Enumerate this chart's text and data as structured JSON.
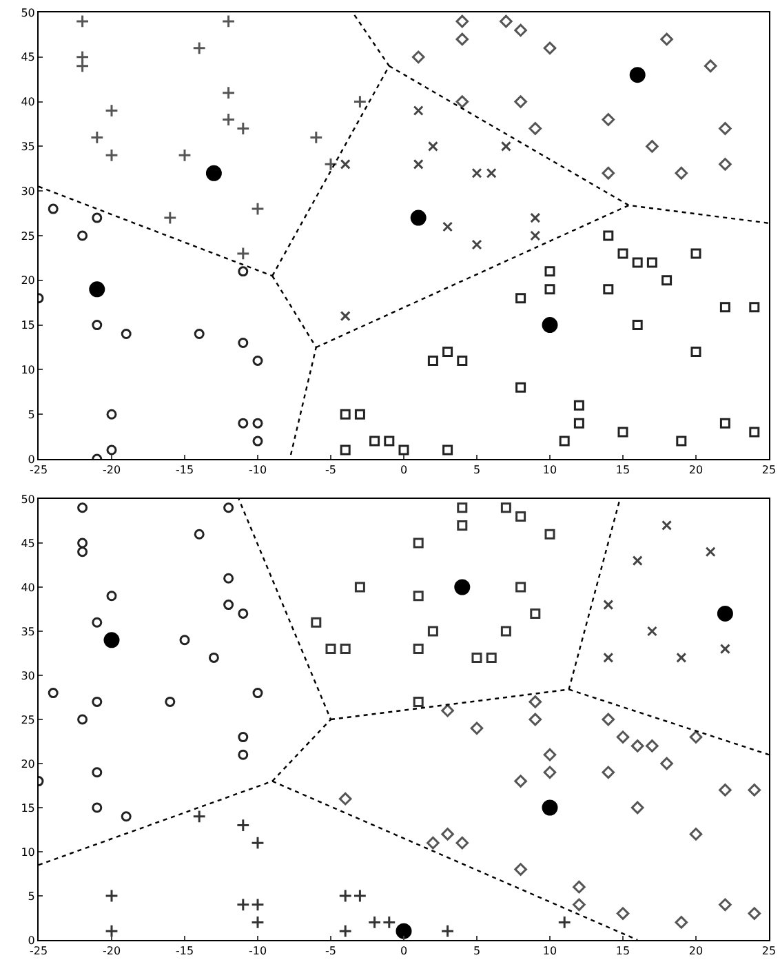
{
  "chart_data": [
    {
      "type": "scatter",
      "xlim": [
        -25,
        25
      ],
      "ylim": [
        0,
        50
      ],
      "xticks": [
        -25,
        -20,
        -15,
        -10,
        -5,
        0,
        5,
        10,
        15,
        20,
        25
      ],
      "yticks": [
        0,
        5,
        10,
        15,
        20,
        25,
        30,
        35,
        40,
        45,
        50
      ],
      "grid": false,
      "series": [
        {
          "color": "#555555",
          "marker": "cross-thin-open",
          "x": [
            -22,
            -22,
            -22,
            -12,
            -14,
            -20,
            -12,
            -12,
            -11,
            -21,
            -20,
            -15,
            -6,
            -5,
            -3,
            -16,
            -10,
            -11
          ],
          "values": [
            49,
            45,
            44,
            49,
            46,
            39,
            41,
            38,
            37,
            36,
            34,
            34,
            36,
            33,
            40,
            27,
            28,
            23
          ]
        },
        {
          "color": "#222222",
          "marker": "circle-open",
          "x": [
            -24,
            -21,
            -22,
            -11,
            -25,
            -21,
            -19,
            -14,
            -11,
            -10,
            -20,
            -11,
            -10,
            -10,
            -20,
            -21
          ],
          "values": [
            28,
            27,
            25,
            21,
            18,
            15,
            14,
            14,
            13,
            11,
            5,
            4,
            4,
            2,
            1,
            0
          ]
        },
        {
          "color": "#444444",
          "marker": "cross",
          "x": [
            1,
            2,
            7,
            1,
            5,
            6,
            3,
            9,
            9,
            5,
            -4,
            -4
          ],
          "values": [
            39,
            35,
            35,
            33,
            32,
            32,
            26,
            27,
            25,
            24,
            33,
            16
          ]
        },
        {
          "color": "#555555",
          "marker": "diamond-open",
          "x": [
            4,
            7,
            8,
            4,
            10,
            18,
            1,
            21,
            4,
            8,
            14,
            9,
            22,
            17,
            22,
            14,
            19
          ],
          "values": [
            49,
            49,
            48,
            47,
            46,
            47,
            45,
            44,
            40,
            40,
            38,
            37,
            37,
            35,
            33,
            32,
            32
          ]
        },
        {
          "color": "#222222",
          "marker": "square-open",
          "x": [
            14,
            15,
            16,
            17,
            20,
            10,
            18,
            10,
            14,
            8,
            22,
            24,
            16,
            20,
            2,
            3,
            4,
            8,
            12,
            12,
            15,
            22,
            24,
            11,
            19,
            -1,
            0,
            3,
            -4,
            -3,
            -4,
            -2
          ],
          "values": [
            25,
            23,
            22,
            22,
            23,
            21,
            20,
            19,
            19,
            18,
            17,
            17,
            15,
            12,
            11,
            12,
            11,
            8,
            6,
            4,
            3,
            4,
            3,
            2,
            2,
            2,
            1,
            1,
            5,
            5,
            1,
            2
          ]
        },
        {
          "color": "#000000",
          "marker": "circle",
          "x": [
            -13,
            -21,
            1,
            16,
            10
          ],
          "values": [
            32,
            19,
            27,
            43,
            15
          ]
        },
        {
          "type": "line",
          "color": "#000000",
          "line_style": "dotted",
          "marker": "none",
          "x": [
            -25,
            -9
          ],
          "values": [
            30.5,
            20.5
          ]
        },
        {
          "type": "line",
          "color": "#000000",
          "line_style": "dotted",
          "marker": "none",
          "x": [
            -9,
            -6,
            -7.8
          ],
          "values": [
            20.5,
            12.5,
            0
          ]
        },
        {
          "type": "line",
          "color": "#000000",
          "line_style": "dotted",
          "marker": "none",
          "x": [
            -9,
            -1,
            -3.5
          ],
          "values": [
            20.5,
            44,
            50
          ]
        },
        {
          "type": "line",
          "color": "#000000",
          "line_style": "dotted",
          "marker": "none",
          "x": [
            -1,
            15.4,
            25
          ],
          "values": [
            44,
            28.4,
            26.4
          ]
        },
        {
          "type": "line",
          "color": "#000000",
          "line_style": "dotted",
          "marker": "none",
          "x": [
            -6,
            15.4
          ],
          "values": [
            12.5,
            28.4
          ]
        }
      ]
    },
    {
      "type": "scatter",
      "xlim": [
        -25,
        25
      ],
      "ylim": [
        0,
        50
      ],
      "xticks": [
        -25,
        -20,
        -15,
        -10,
        -5,
        0,
        5,
        10,
        15,
        20,
        25
      ],
      "yticks": [
        0,
        5,
        10,
        15,
        20,
        25,
        30,
        35,
        40,
        45,
        50
      ],
      "grid": false,
      "series": [
        {
          "color": "#222222",
          "marker": "circle-open",
          "x": [
            -22,
            -12,
            -14,
            -22,
            -22,
            -12,
            -20,
            -12,
            -11,
            -21,
            -15,
            -13,
            -24,
            -10,
            -21,
            -16,
            -22,
            -11,
            -11,
            -21,
            -25,
            -21,
            -19
          ],
          "values": [
            49,
            49,
            46,
            45,
            44,
            41,
            39,
            38,
            37,
            36,
            34,
            32,
            28,
            28,
            27,
            27,
            25,
            23,
            21,
            19,
            18,
            15,
            14
          ]
        },
        {
          "color": "#333333",
          "marker": "cross-thin-open",
          "x": [
            -14,
            -11,
            -10,
            -20,
            -11,
            -10,
            -10,
            -20,
            -4,
            -3,
            -4,
            -2,
            -1,
            3,
            11
          ],
          "values": [
            14,
            13,
            11,
            5,
            4,
            4,
            2,
            1,
            5,
            5,
            1,
            2,
            2,
            1,
            2
          ]
        },
        {
          "color": "#333333",
          "marker": "square-open",
          "x": [
            4,
            7,
            8,
            4,
            10,
            1,
            8,
            1,
            9,
            2,
            7,
            1,
            5,
            6,
            1,
            -3,
            -6,
            -5,
            -4
          ],
          "values": [
            49,
            49,
            48,
            47,
            46,
            45,
            40,
            39,
            37,
            35,
            35,
            33,
            32,
            32,
            27,
            40,
            36,
            33,
            33
          ]
        },
        {
          "color": "#444444",
          "marker": "cross",
          "x": [
            18,
            21,
            16,
            14,
            17,
            22,
            14,
            19
          ],
          "values": [
            47,
            44,
            43,
            38,
            35,
            33,
            32,
            32
          ]
        },
        {
          "color": "#555555",
          "marker": "diamond-open",
          "x": [
            9,
            3,
            9,
            14,
            5,
            15,
            16,
            17,
            20,
            10,
            18,
            10,
            14,
            8,
            22,
            24,
            16,
            20,
            3,
            2,
            4,
            8,
            12,
            12,
            15,
            22,
            24,
            19,
            -4
          ],
          "values": [
            27,
            26,
            25,
            25,
            24,
            23,
            22,
            22,
            23,
            21,
            20,
            19,
            19,
            18,
            17,
            17,
            15,
            12,
            12,
            11,
            11,
            8,
            6,
            4,
            3,
            4,
            3,
            2,
            16
          ]
        },
        {
          "color": "#000000",
          "marker": "circle",
          "x": [
            -20,
            4,
            22,
            10,
            0
          ],
          "values": [
            34,
            40,
            37,
            15,
            1
          ]
        },
        {
          "type": "line",
          "color": "#000000",
          "line_style": "dotted",
          "marker": "none",
          "x": [
            -25,
            -9
          ],
          "values": [
            8.5,
            18
          ]
        },
        {
          "type": "line",
          "color": "#000000",
          "line_style": "dotted",
          "marker": "none",
          "x": [
            -9,
            -5,
            -11.3
          ],
          "values": [
            18,
            25,
            50
          ]
        },
        {
          "type": "line",
          "color": "#000000",
          "line_style": "dotted",
          "marker": "none",
          "x": [
            -5,
            11.3,
            14.8
          ],
          "values": [
            25,
            28.4,
            50
          ]
        },
        {
          "type": "line",
          "color": "#000000",
          "line_style": "dotted",
          "marker": "none",
          "x": [
            11.3,
            25
          ],
          "values": [
            28.4,
            21
          ]
        },
        {
          "type": "line",
          "color": "#000000",
          "line_style": "dotted",
          "marker": "none",
          "x": [
            -9,
            16
          ],
          "values": [
            18,
            0
          ]
        }
      ]
    }
  ]
}
